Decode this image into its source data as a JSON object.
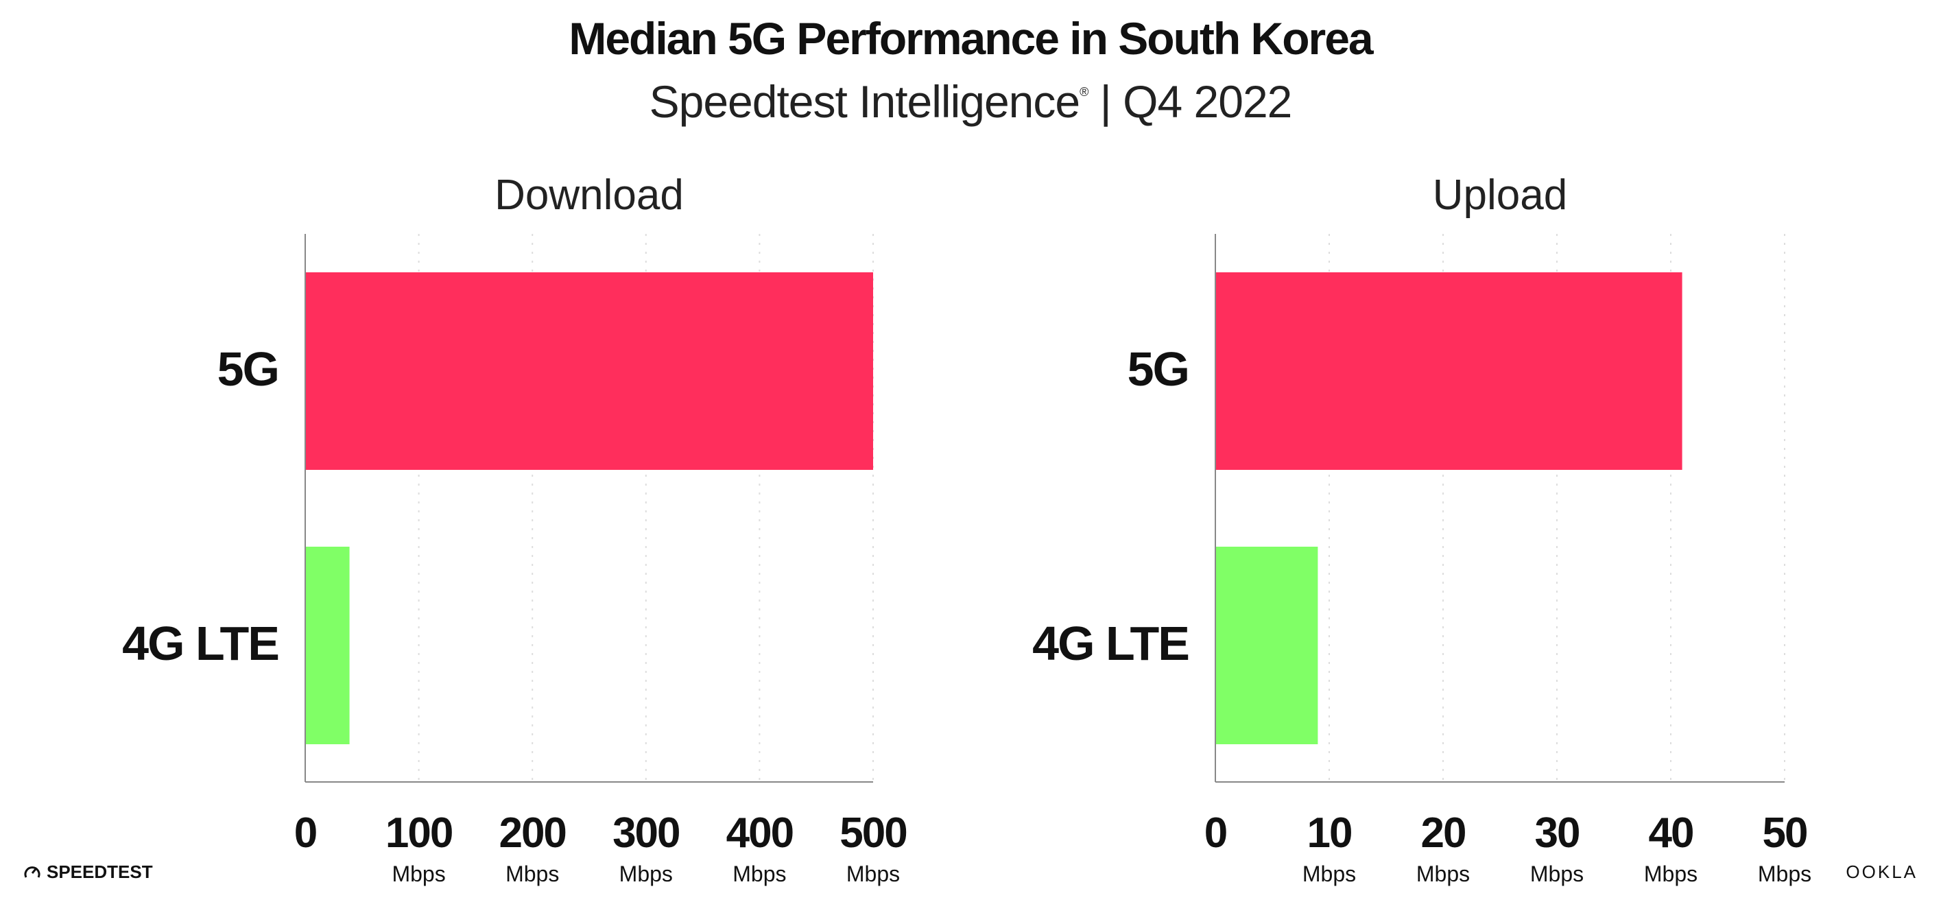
{
  "header": {
    "title": "Median 5G Performance in South Korea",
    "subtitle_main": "Speedtest Intelligence",
    "subtitle_mark": "®",
    "subtitle_rest": " | Q4 2022"
  },
  "footer": {
    "left_logo": "SPEEDTEST",
    "right_logo": "OOKLA"
  },
  "colors": {
    "5G": "#FF2E5C",
    "4G LTE": "#80FF66",
    "grid": "#dddddd",
    "axis": "#888888"
  },
  "chart_data": [
    {
      "type": "bar",
      "orientation": "horizontal",
      "title": "Download",
      "categories": [
        "5G",
        "4G LTE"
      ],
      "values": [
        500,
        39
      ],
      "xlim": [
        0,
        500
      ],
      "ticks": [
        "0",
        "100",
        "200",
        "300",
        "400",
        "500"
      ],
      "tick_values": [
        0,
        100,
        200,
        300,
        400,
        500
      ],
      "tick_unit": "Mbps",
      "grid": true
    },
    {
      "type": "bar",
      "orientation": "horizontal",
      "title": "Upload",
      "categories": [
        "5G",
        "4G LTE"
      ],
      "values": [
        41,
        9
      ],
      "xlim": [
        0,
        50
      ],
      "ticks": [
        "0",
        "10",
        "20",
        "30",
        "40",
        "50"
      ],
      "tick_values": [
        0,
        10,
        20,
        30,
        40,
        50
      ],
      "tick_unit": "Mbps",
      "grid": true
    }
  ]
}
